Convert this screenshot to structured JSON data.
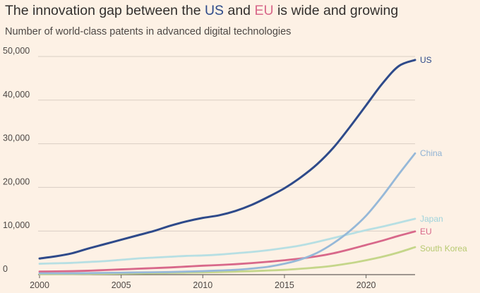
{
  "header": {
    "title_prefix": "The innovation gap between the ",
    "title_us": "US",
    "title_mid": " and ",
    "title_eu": "EU",
    "title_suffix": " is wide and growing",
    "subtitle": "Number of world-class patents in advanced digital technologies"
  },
  "chart_data": {
    "type": "line",
    "title": "The innovation gap between the US and EU is wide and growing",
    "subtitle": "Number of world-class patents in advanced digital technologies",
    "xlabel": "",
    "ylabel": "",
    "xlim": [
      2000,
      2023
    ],
    "ylim": [
      0,
      50000
    ],
    "grid": true,
    "x_ticks": [
      2000,
      2005,
      2010,
      2015,
      2020
    ],
    "x_tick_labels": [
      "2000",
      "2005",
      "2010",
      "2015",
      "2020"
    ],
    "y_ticks": [
      0,
      10000,
      20000,
      30000,
      40000,
      50000
    ],
    "y_tick_labels": [
      "0",
      "10,000",
      "20,000",
      "30,000",
      "40,000",
      "50,000"
    ],
    "x": [
      2000,
      2001,
      2002,
      2003,
      2004,
      2005,
      2006,
      2007,
      2008,
      2009,
      2010,
      2011,
      2012,
      2013,
      2014,
      2015,
      2016,
      2017,
      2018,
      2019,
      2020,
      2021,
      2022,
      2023
    ],
    "series": [
      {
        "name": "US",
        "color": "#2e4a8a",
        "values": [
          3700,
          4200,
          4900,
          6000,
          7000,
          8000,
          9000,
          10000,
          11200,
          12200,
          13000,
          13600,
          14600,
          16000,
          17800,
          19800,
          22300,
          25300,
          29100,
          33800,
          38800,
          43800,
          47800,
          49200
        ]
      },
      {
        "name": "China",
        "color": "#96b8d8",
        "values": [
          300,
          300,
          300,
          350,
          400,
          450,
          500,
          550,
          600,
          700,
          800,
          950,
          1100,
          1400,
          1800,
          2500,
          3500,
          5000,
          7200,
          10000,
          13500,
          18000,
          23000,
          27800
        ]
      },
      {
        "name": "Japan",
        "color": "#b7dfe3",
        "values": [
          2500,
          2600,
          2700,
          2900,
          3100,
          3400,
          3700,
          3900,
          4100,
          4300,
          4400,
          4600,
          4900,
          5200,
          5600,
          6100,
          6700,
          7500,
          8400,
          9300,
          10200,
          11000,
          11900,
          12800
        ]
      },
      {
        "name": "EU",
        "color": "#d8688a",
        "values": [
          700,
          750,
          800,
          900,
          1050,
          1200,
          1350,
          1500,
          1650,
          1850,
          2050,
          2200,
          2400,
          2650,
          2950,
          3300,
          3700,
          4200,
          4900,
          5800,
          6800,
          7800,
          8900,
          9900
        ]
      },
      {
        "name": "South Korea",
        "color": "#c5d68a",
        "values": [
          100,
          120,
          140,
          170,
          200,
          240,
          290,
          340,
          400,
          460,
          520,
          600,
          700,
          800,
          950,
          1100,
          1350,
          1650,
          2050,
          2600,
          3300,
          4100,
          5100,
          6300
        ]
      }
    ]
  }
}
